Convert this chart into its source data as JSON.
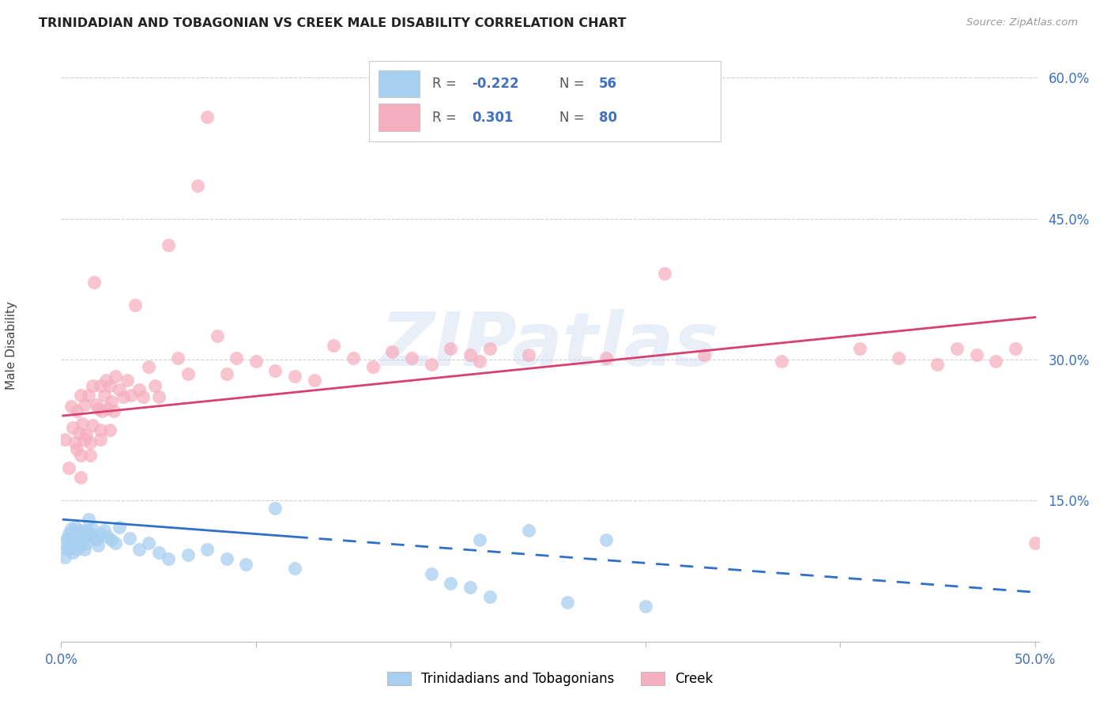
{
  "title": "TRINIDADIAN AND TOBAGONIAN VS CREEK MALE DISABILITY CORRELATION CHART",
  "source": "Source: ZipAtlas.com",
  "ylabel": "Male Disability",
  "xlim": [
    0.0,
    0.502
  ],
  "ylim": [
    0.0,
    0.63
  ],
  "blue_R": "-0.222",
  "blue_N": "56",
  "pink_R": "0.301",
  "pink_N": "80",
  "blue_color": "#A8CFF0",
  "pink_color": "#F5B0C0",
  "blue_line_color": "#3070C8",
  "pink_line_color": "#D84070",
  "legend_blue_label": "Trinidadians and Tobagonians",
  "legend_pink_label": "Creek",
  "watermark": "ZIPatlas",
  "label_color": "#4070C0",
  "blue_scatter_x": [
    0.001,
    0.002,
    0.003,
    0.003,
    0.004,
    0.004,
    0.005,
    0.005,
    0.006,
    0.006,
    0.007,
    0.007,
    0.008,
    0.008,
    0.009,
    0.009,
    0.01,
    0.01,
    0.011,
    0.011,
    0.012,
    0.012,
    0.013,
    0.013,
    0.014,
    0.015,
    0.016,
    0.017,
    0.018,
    0.019,
    0.02,
    0.022,
    0.024,
    0.026,
    0.028,
    0.03,
    0.035,
    0.04,
    0.045,
    0.05,
    0.055,
    0.065,
    0.075,
    0.085,
    0.095,
    0.11,
    0.12,
    0.19,
    0.2,
    0.21,
    0.215,
    0.22,
    0.24,
    0.26,
    0.28,
    0.3
  ],
  "blue_scatter_y": [
    0.105,
    0.09,
    0.11,
    0.098,
    0.115,
    0.1,
    0.12,
    0.105,
    0.112,
    0.095,
    0.108,
    0.122,
    0.115,
    0.098,
    0.112,
    0.105,
    0.118,
    0.102,
    0.115,
    0.108,
    0.112,
    0.098,
    0.118,
    0.105,
    0.13,
    0.115,
    0.12,
    0.11,
    0.108,
    0.102,
    0.115,
    0.118,
    0.112,
    0.108,
    0.105,
    0.122,
    0.11,
    0.098,
    0.105,
    0.095,
    0.088,
    0.092,
    0.098,
    0.088,
    0.082,
    0.142,
    0.078,
    0.072,
    0.062,
    0.058,
    0.108,
    0.048,
    0.118,
    0.042,
    0.108,
    0.038
  ],
  "pink_scatter_x": [
    0.002,
    0.004,
    0.005,
    0.006,
    0.007,
    0.008,
    0.008,
    0.009,
    0.01,
    0.01,
    0.011,
    0.012,
    0.012,
    0.013,
    0.014,
    0.015,
    0.016,
    0.016,
    0.017,
    0.018,
    0.019,
    0.02,
    0.02,
    0.021,
    0.022,
    0.023,
    0.024,
    0.025,
    0.026,
    0.027,
    0.028,
    0.03,
    0.032,
    0.034,
    0.036,
    0.038,
    0.04,
    0.042,
    0.045,
    0.048,
    0.05,
    0.055,
    0.06,
    0.065,
    0.07,
    0.075,
    0.08,
    0.085,
    0.09,
    0.1,
    0.11,
    0.12,
    0.13,
    0.14,
    0.15,
    0.16,
    0.17,
    0.18,
    0.19,
    0.2,
    0.21,
    0.215,
    0.22,
    0.24,
    0.28,
    0.31,
    0.33,
    0.37,
    0.41,
    0.43,
    0.45,
    0.46,
    0.47,
    0.48,
    0.49,
    0.5,
    0.01,
    0.015,
    0.02,
    0.025
  ],
  "pink_scatter_y": [
    0.215,
    0.185,
    0.25,
    0.228,
    0.212,
    0.205,
    0.245,
    0.222,
    0.198,
    0.262,
    0.232,
    0.215,
    0.252,
    0.22,
    0.262,
    0.212,
    0.272,
    0.23,
    0.382,
    0.252,
    0.248,
    0.225,
    0.272,
    0.245,
    0.262,
    0.278,
    0.248,
    0.272,
    0.255,
    0.245,
    0.282,
    0.268,
    0.26,
    0.278,
    0.262,
    0.358,
    0.268,
    0.26,
    0.292,
    0.272,
    0.26,
    0.422,
    0.302,
    0.285,
    0.485,
    0.558,
    0.325,
    0.285,
    0.302,
    0.298,
    0.288,
    0.282,
    0.278,
    0.315,
    0.302,
    0.292,
    0.308,
    0.302,
    0.295,
    0.312,
    0.305,
    0.298,
    0.312,
    0.305,
    0.302,
    0.392,
    0.305,
    0.298,
    0.312,
    0.302,
    0.295,
    0.312,
    0.305,
    0.298,
    0.312,
    0.105,
    0.175,
    0.198,
    0.215,
    0.225
  ]
}
